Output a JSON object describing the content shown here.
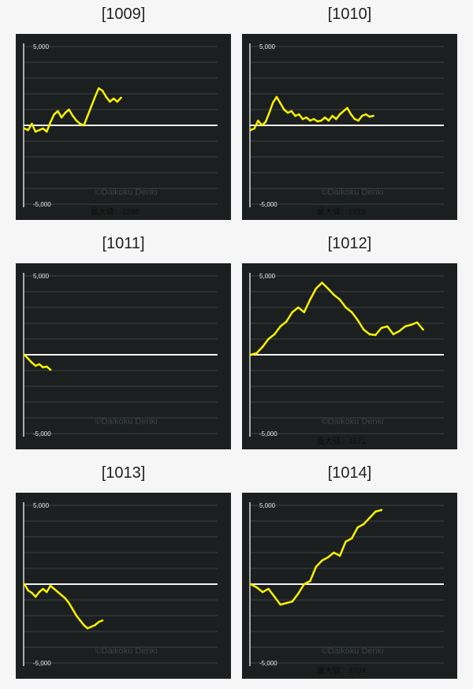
{
  "chart_data": [
    {
      "type": "line",
      "title": "[1009]",
      "ytick_top": "5,000",
      "ytick_bottom": "-5,000",
      "ylim": [
        -5000,
        5000
      ],
      "max_label": "最大値：2386",
      "watermark": "©Daikoku Denki",
      "x": [
        0,
        5,
        10,
        15,
        20,
        25,
        30,
        35,
        40,
        45,
        50,
        55,
        60,
        65,
        70,
        75,
        80,
        85,
        90,
        95,
        100,
        105,
        110,
        115,
        120,
        125,
        130
      ],
      "values": [
        -200,
        -300,
        100,
        -400,
        -300,
        -200,
        -400,
        200,
        700,
        900,
        500,
        800,
        1000,
        600,
        300,
        100,
        0,
        600,
        1200,
        1800,
        2350,
        2200,
        1800,
        1500,
        1700,
        1500,
        1750
      ],
      "series_color": "#f7f100"
    },
    {
      "type": "line",
      "title": "[1010]",
      "ytick_top": "5,000",
      "ytick_bottom": "-5,000",
      "ylim": [
        -5000,
        5000
      ],
      "max_label": "最大値：1819",
      "watermark": "©Daikoku Denki",
      "x": [
        0,
        5,
        10,
        15,
        20,
        25,
        30,
        35,
        40,
        45,
        50,
        55,
        60,
        65,
        70,
        75,
        80,
        85,
        90,
        95,
        100,
        105,
        110,
        115,
        120,
        125,
        130,
        135,
        140,
        145,
        150,
        155,
        160,
        165
      ],
      "values": [
        -300,
        -200,
        300,
        0,
        200,
        800,
        1450,
        1800,
        1400,
        1000,
        800,
        900,
        600,
        700,
        400,
        500,
        300,
        400,
        250,
        300,
        500,
        300,
        600,
        400,
        700,
        900,
        1100,
        700,
        400,
        300,
        600,
        700,
        550,
        600
      ],
      "series_color": "#f7f100"
    },
    {
      "type": "line",
      "title": "[1011]",
      "ytick_top": "5,000",
      "ytick_bottom": "-5,000",
      "ylim": [
        -5000,
        5000
      ],
      "max_label": "",
      "watermark": "©Daikoku Denki",
      "x": [
        0,
        5,
        10,
        15,
        20,
        25,
        30,
        35
      ],
      "values": [
        0,
        -250,
        -500,
        -700,
        -600,
        -800,
        -750,
        -950
      ],
      "series_color": "#f7f100"
    },
    {
      "type": "line",
      "title": "[1012]",
      "ytick_top": "5,000",
      "ytick_bottom": "-5,000",
      "ylim": [
        -5000,
        5000
      ],
      "max_label": "最大値：4571",
      "watermark": "©Daikoku Denki",
      "x": [
        0,
        8,
        16,
        24,
        32,
        40,
        48,
        56,
        64,
        72,
        80,
        88,
        96,
        104,
        112,
        120,
        128,
        136,
        144,
        152,
        160,
        168,
        176,
        184,
        192,
        200,
        208,
        216,
        224,
        232
      ],
      "values": [
        0,
        100,
        500,
        1000,
        1300,
        1800,
        2100,
        2700,
        3000,
        2700,
        3500,
        4200,
        4571,
        4200,
        3800,
        3500,
        3000,
        2700,
        2200,
        1600,
        1300,
        1250,
        1700,
        1800,
        1300,
        1500,
        1800,
        1900,
        2050,
        1600
      ],
      "series_color": "#f7f100"
    },
    {
      "type": "line",
      "title": "[1013]",
      "ytick_top": "5,000",
      "ytick_bottom": "-5,000",
      "ylim": [
        -5000,
        5000
      ],
      "max_label": "",
      "watermark": "©Daikoku Denki",
      "x": [
        0,
        5,
        10,
        15,
        20,
        25,
        30,
        35,
        40,
        45,
        50,
        55,
        60,
        65,
        70,
        75,
        80,
        85,
        90,
        95,
        100,
        105
      ],
      "values": [
        0,
        -400,
        -550,
        -800,
        -500,
        -300,
        -500,
        -100,
        -300,
        -500,
        -700,
        -900,
        -1200,
        -1600,
        -2000,
        -2300,
        -2600,
        -2800,
        -2700,
        -2600,
        -2400,
        -2300
      ],
      "series_color": "#f7f100"
    },
    {
      "type": "line",
      "title": "[1014]",
      "ytick_top": "5,000",
      "ytick_bottom": "-5,000",
      "ylim": [
        -5000,
        5000
      ],
      "max_label": "最大値：4704",
      "watermark": "©Daikoku Denki",
      "x": [
        0,
        8,
        16,
        24,
        32,
        40,
        48,
        56,
        64,
        72,
        80,
        88,
        96,
        104,
        112,
        120,
        128,
        136,
        144,
        152,
        160,
        168,
        176
      ],
      "values": [
        0,
        -200,
        -500,
        -300,
        -800,
        -1300,
        -1200,
        -1100,
        -600,
        0,
        200,
        1100,
        1500,
        1700,
        2000,
        1800,
        2700,
        2900,
        3600,
        3800,
        4200,
        4600,
        4704
      ],
      "series_color": "#f7f100"
    }
  ]
}
